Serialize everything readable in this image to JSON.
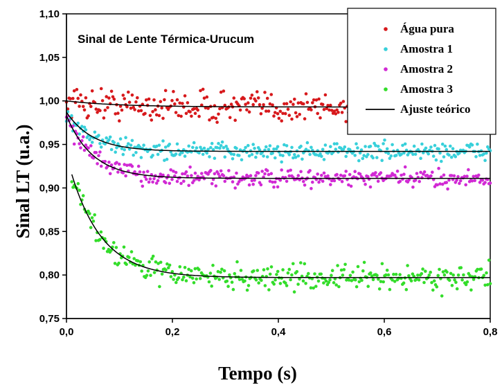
{
  "chart_data": {
    "type": "scatter",
    "title": "Sinal de Lente Térmica-Urucum",
    "xlabel": "Tempo (s)",
    "ylabel": "Sinal LT (u.a.)",
    "xlim": [
      0.0,
      0.8
    ],
    "ylim": [
      0.75,
      1.1
    ],
    "x_ticks": [
      "0,0",
      "0,2",
      "0,4",
      "0,6",
      "0,8"
    ],
    "y_ticks": [
      "0,75",
      "0,80",
      "0,85",
      "0,90",
      "0,95",
      "1,00",
      "1,05",
      "1,10"
    ],
    "grid": false,
    "legend_position": "top-right",
    "series": [
      {
        "name": "Água pura",
        "color": "#d7191c",
        "marker": "point",
        "x_range": [
          0.0,
          0.8
        ],
        "model": {
          "y_inf": 0.993,
          "amplitude": 0.007,
          "tau": 0.1
        },
        "noise": 0.009,
        "n_points": 330
      },
      {
        "name": "Amostra 1",
        "color": "#38d0da",
        "marker": "point",
        "x_range": [
          0.0,
          0.8
        ],
        "model": {
          "y_inf": 0.942,
          "amplitude": 0.045,
          "tau": 0.05
        },
        "noise": 0.005,
        "n_points": 330
      },
      {
        "name": "Amostra 2",
        "color": "#d12ad4",
        "marker": "point",
        "x_range": [
          0.0,
          0.8
        ],
        "model": {
          "y_inf": 0.911,
          "amplitude": 0.072,
          "tau": 0.05
        },
        "noise": 0.005,
        "n_points": 330
      },
      {
        "name": "Amostra 3",
        "color": "#33dd2a",
        "marker": "point",
        "x_range": [
          0.01,
          0.8
        ],
        "model": {
          "y_inf": 0.797,
          "amplitude": 0.14,
          "tau": 0.06
        },
        "noise": 0.007,
        "n_points": 330
      }
    ],
    "fit_line": {
      "name": "Ajuste teórico",
      "color": "#000000"
    }
  }
}
